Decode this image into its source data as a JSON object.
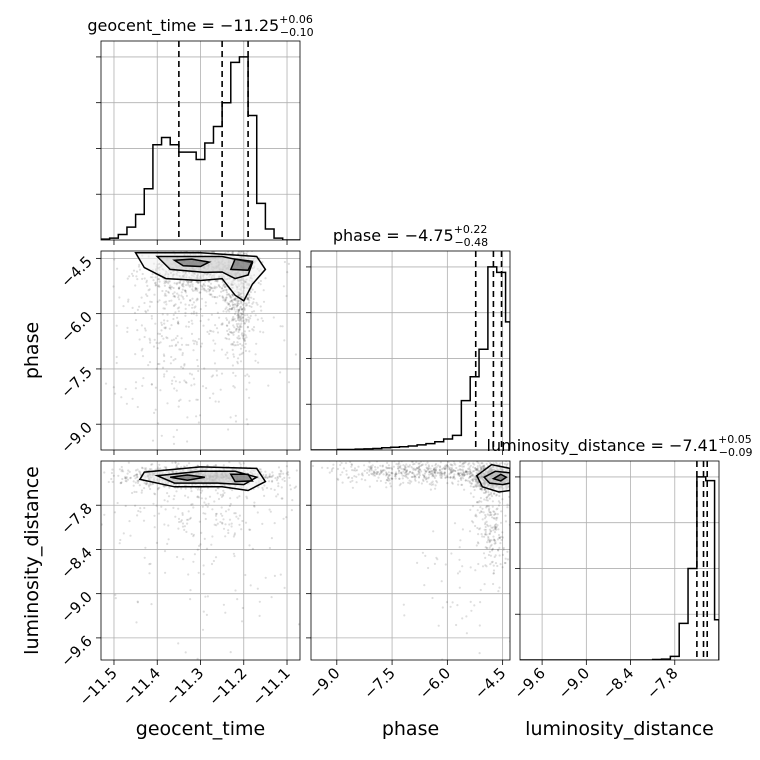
{
  "chart_data": {
    "type": "corner",
    "parameters": [
      "geocent_time",
      "phase",
      "luminosity_distance"
    ],
    "titles": [
      {
        "parameter": "geocent_time",
        "median": "−11.25",
        "plus": "+0.06",
        "minus": "−0.10"
      },
      {
        "parameter": "phase",
        "median": "−4.75",
        "plus": "+0.22",
        "minus": "−0.48"
      },
      {
        "parameter": "luminosity_distance",
        "median": "−7.41",
        "plus": "+0.05",
        "minus": "−0.09"
      }
    ],
    "ranges": {
      "geocent_time": [
        -11.53,
        -11.07
      ],
      "phase": [
        -9.7,
        -4.3
      ],
      "luminosity_distance": [
        -9.9,
        -7.2
      ]
    },
    "ticks": {
      "geocent_time": [
        -11.5,
        -11.4,
        -11.3,
        -11.2,
        -11.1
      ],
      "phase": [
        -9.0,
        -7.5,
        -6.0,
        -4.5
      ],
      "luminosity_distance": [
        -9.6,
        -9.0,
        -8.4,
        -7.8
      ]
    },
    "tick_labels": {
      "geocent_time": [
        "−11.5",
        "−11.4",
        "−11.3",
        "−11.2",
        "−11.1"
      ],
      "phase": [
        "−9.0",
        "−7.5",
        "−6.0",
        "−4.5"
      ],
      "luminosity_distance": [
        "−9.6",
        "−9.0",
        "−8.4",
        "−7.8"
      ]
    },
    "quantiles": {
      "geocent_time": [
        -11.35,
        -11.25,
        -11.19
      ],
      "phase": [
        -5.23,
        -4.75,
        -4.53
      ],
      "luminosity_distance": [
        -7.5,
        -7.41,
        -7.36
      ]
    },
    "histograms": {
      "geocent_time": {
        "edges": [
          -11.53,
          -11.51,
          -11.49,
          -11.47,
          -11.45,
          -11.43,
          -11.41,
          -11.39,
          -11.37,
          -11.35,
          -11.33,
          -11.31,
          -11.29,
          -11.27,
          -11.25,
          -11.23,
          -11.21,
          -11.19,
          -11.17,
          -11.15,
          -11.13,
          -11.11,
          -11.09,
          -11.07
        ],
        "counts": [
          0.005,
          0.01,
          0.03,
          0.07,
          0.14,
          0.28,
          0.52,
          0.56,
          0.52,
          0.48,
          0.48,
          0.44,
          0.53,
          0.62,
          0.75,
          0.97,
          1.0,
          0.68,
          0.2,
          0.06,
          0.01,
          0.0,
          0.0
        ]
      },
      "phase": {
        "edges": [
          -9.7,
          -9.46,
          -9.22,
          -8.98,
          -8.74,
          -8.5,
          -8.26,
          -8.02,
          -7.78,
          -7.54,
          -7.3,
          -7.06,
          -6.82,
          -6.58,
          -6.34,
          -6.1,
          -5.86,
          -5.62,
          -5.38,
          -5.14,
          -4.9,
          -4.66,
          -4.42,
          -4.3
        ],
        "counts": [
          0.0,
          0.0,
          0.0,
          0.003,
          0.003,
          0.005,
          0.006,
          0.008,
          0.012,
          0.015,
          0.018,
          0.022,
          0.028,
          0.035,
          0.045,
          0.06,
          0.08,
          0.27,
          0.4,
          0.55,
          1.0,
          0.97,
          0.7
        ]
      },
      "luminosity_distance": {
        "edges": [
          -9.9,
          -9.78,
          -9.66,
          -9.54,
          -9.42,
          -9.3,
          -9.18,
          -9.06,
          -8.94,
          -8.82,
          -8.7,
          -8.58,
          -8.46,
          -8.34,
          -8.22,
          -8.1,
          -7.98,
          -7.86,
          -7.74,
          -7.62,
          -7.5,
          -7.38,
          -7.26,
          -7.2
        ],
        "counts": [
          0.0,
          0.0,
          0.0,
          0.0,
          0.0,
          0.0,
          0.0,
          0.0,
          0.0,
          0.0,
          0.0,
          0.0,
          0.0,
          0.0,
          0.0,
          0.003,
          0.005,
          0.02,
          0.2,
          0.5,
          1.0,
          0.98,
          0.22
        ]
      }
    },
    "scatter_regions": [
      {
        "x": "geocent_time",
        "y": "phase",
        "blobs": [
          {
            "cx": -11.3,
            "cy": -4.85,
            "sx": 0.06,
            "sy": 0.35,
            "n": 700
          },
          {
            "cx": -11.21,
            "cy": -5.3,
            "sx": 0.02,
            "sy": 0.9,
            "n": 600
          },
          {
            "cx": -11.36,
            "cy": -5.8,
            "sx": 0.05,
            "sy": 1.2,
            "n": 260
          },
          {
            "cx": -11.3,
            "cy": -7.2,
            "sx": 0.1,
            "sy": 1.4,
            "n": 160
          }
        ]
      },
      {
        "x": "geocent_time",
        "y": "luminosity_distance",
        "blobs": [
          {
            "cx": -11.3,
            "cy": -7.42,
            "sx": 0.08,
            "sy": 0.07,
            "n": 1200
          },
          {
            "cx": -11.28,
            "cy": -7.8,
            "sx": 0.1,
            "sy": 0.3,
            "n": 220
          },
          {
            "cx": -11.3,
            "cy": -8.7,
            "sx": 0.12,
            "sy": 0.6,
            "n": 70
          }
        ]
      },
      {
        "x": "phase",
        "y": "luminosity_distance",
        "blobs": [
          {
            "cx": -4.7,
            "cy": -7.43,
            "sx": 0.3,
            "sy": 0.08,
            "n": 800
          },
          {
            "cx": -6.5,
            "cy": -7.35,
            "sx": 1.3,
            "sy": 0.08,
            "n": 600
          },
          {
            "cx": -4.8,
            "cy": -8.0,
            "sx": 0.25,
            "sy": 0.4,
            "n": 250
          },
          {
            "cx": -5.5,
            "cy": -8.8,
            "sx": 0.8,
            "sy": 0.7,
            "n": 60
          }
        ]
      }
    ],
    "contours": [
      {
        "x": "geocent_time",
        "y": "phase",
        "levels": [
          [
            [
              -11.45,
              -4.35
            ],
            [
              -11.43,
              -4.75
            ],
            [
              -11.38,
              -5.05
            ],
            [
              -11.3,
              -5.1
            ],
            [
              -11.25,
              -5.05
            ],
            [
              -11.22,
              -5.5
            ],
            [
              -11.2,
              -5.65
            ],
            [
              -11.18,
              -5.2
            ],
            [
              -11.15,
              -4.8
            ],
            [
              -11.17,
              -4.45
            ],
            [
              -11.3,
              -4.35
            ]
          ],
          [
            [
              -11.4,
              -4.45
            ],
            [
              -11.37,
              -4.8
            ],
            [
              -11.29,
              -4.88
            ],
            [
              -11.25,
              -4.87
            ],
            [
              -11.22,
              -5.05
            ],
            [
              -11.19,
              -4.95
            ],
            [
              -11.18,
              -4.62
            ],
            [
              -11.25,
              -4.45
            ],
            [
              -11.32,
              -4.45
            ]
          ],
          [
            [
              -11.36,
              -4.55
            ],
            [
              -11.34,
              -4.7
            ],
            [
              -11.3,
              -4.72
            ],
            [
              -11.28,
              -4.6
            ],
            [
              -11.32,
              -4.52
            ]
          ],
          [
            [
              -11.22,
              -4.52
            ],
            [
              -11.23,
              -4.8
            ],
            [
              -11.19,
              -4.82
            ],
            [
              -11.18,
              -4.58
            ]
          ]
        ]
      },
      {
        "x": "geocent_time",
        "y": "luminosity_distance",
        "levels": [
          [
            [
              -11.43,
              -7.35
            ],
            [
              -11.44,
              -7.45
            ],
            [
              -11.36,
              -7.55
            ],
            [
              -11.25,
              -7.55
            ],
            [
              -11.19,
              -7.6
            ],
            [
              -11.15,
              -7.48
            ],
            [
              -11.17,
              -7.3
            ],
            [
              -11.3,
              -7.28
            ]
          ],
          [
            [
              -11.4,
              -7.4
            ],
            [
              -11.36,
              -7.5
            ],
            [
              -11.26,
              -7.5
            ],
            [
              -11.2,
              -7.52
            ],
            [
              -11.17,
              -7.42
            ],
            [
              -11.22,
              -7.34
            ],
            [
              -11.3,
              -7.34
            ]
          ],
          [
            [
              -11.37,
              -7.42
            ],
            [
              -11.33,
              -7.46
            ],
            [
              -11.29,
              -7.42
            ],
            [
              -11.33,
              -7.39
            ]
          ],
          [
            [
              -11.23,
              -7.38
            ],
            [
              -11.22,
              -7.48
            ],
            [
              -11.18,
              -7.47
            ],
            [
              -11.19,
              -7.38
            ]
          ]
        ]
      },
      {
        "x": "phase",
        "y": "luminosity_distance",
        "levels": [
          [
            [
              -5.2,
              -7.4
            ],
            [
              -5.05,
              -7.55
            ],
            [
              -4.6,
              -7.62
            ],
            [
              -4.3,
              -7.6
            ],
            [
              -4.3,
              -7.3
            ],
            [
              -4.8,
              -7.25
            ]
          ],
          [
            [
              -5.0,
              -7.42
            ],
            [
              -4.85,
              -7.5
            ],
            [
              -4.5,
              -7.52
            ],
            [
              -4.3,
              -7.5
            ],
            [
              -4.3,
              -7.36
            ],
            [
              -4.7,
              -7.34
            ]
          ],
          [
            [
              -4.75,
              -7.44
            ],
            [
              -4.55,
              -7.47
            ],
            [
              -4.4,
              -7.42
            ],
            [
              -4.55,
              -7.38
            ]
          ]
        ]
      }
    ]
  }
}
